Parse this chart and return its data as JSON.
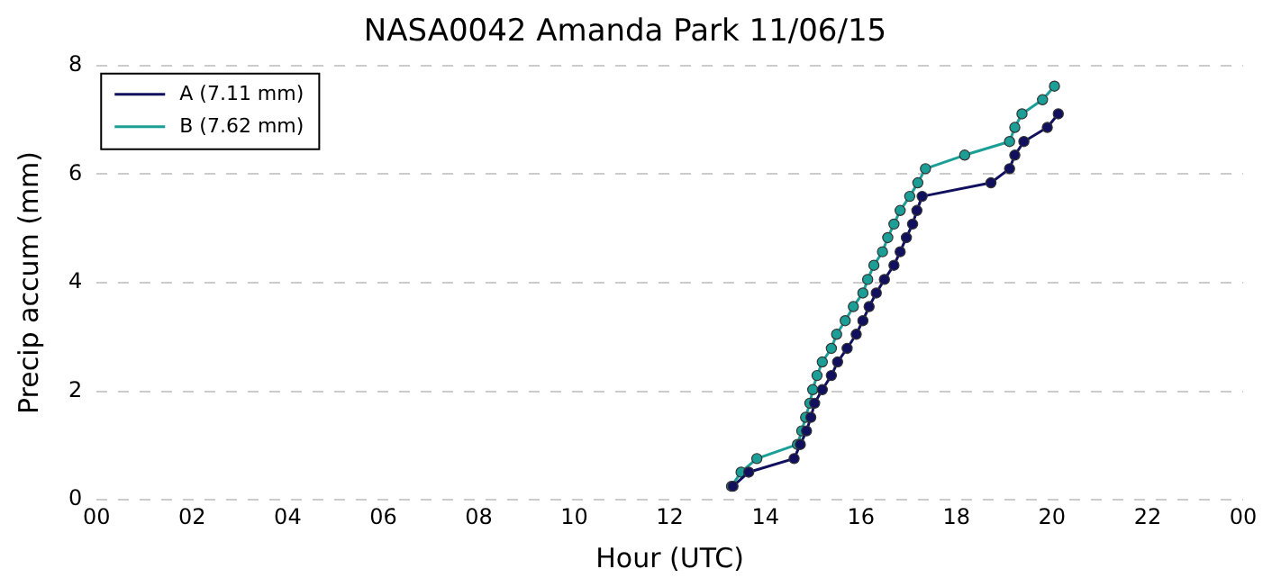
{
  "chart_data": {
    "type": "line",
    "title": "NASA0042 Amanda Park 11/06/15",
    "xlabel": "Hour (UTC)",
    "ylabel": "Precip accum (mm)",
    "xlim": [
      0,
      24
    ],
    "xticks": [
      {
        "value": 0,
        "label": "00"
      },
      {
        "value": 2,
        "label": "02"
      },
      {
        "value": 4,
        "label": "04"
      },
      {
        "value": 6,
        "label": "06"
      },
      {
        "value": 8,
        "label": "08"
      },
      {
        "value": 10,
        "label": "10"
      },
      {
        "value": 12,
        "label": "12"
      },
      {
        "value": 14,
        "label": "14"
      },
      {
        "value": 16,
        "label": "16"
      },
      {
        "value": 18,
        "label": "18"
      },
      {
        "value": 20,
        "label": "20"
      },
      {
        "value": 22,
        "label": "22"
      },
      {
        "value": 24,
        "label": "00"
      }
    ],
    "ylim": [
      0,
      8
    ],
    "yticks": [
      0,
      2,
      4,
      6,
      8
    ],
    "grid": "y",
    "legend": "top left",
    "marker": "circle",
    "line_style": "solid",
    "series": [
      {
        "name": "A (7.11 mm)",
        "color": "#10105e",
        "x": [
          13.32,
          13.65,
          14.6,
          14.73,
          14.86,
          14.95,
          15.03,
          15.19,
          15.38,
          15.51,
          15.71,
          15.9,
          16.04,
          16.17,
          16.32,
          16.49,
          16.69,
          16.82,
          16.95,
          17.08,
          17.17,
          17.28,
          18.72,
          19.11,
          19.22,
          19.41,
          19.9,
          20.13
        ],
        "values": [
          0.25,
          0.51,
          0.76,
          1.02,
          1.27,
          1.52,
          1.78,
          2.03,
          2.29,
          2.54,
          2.79,
          3.05,
          3.3,
          3.56,
          3.81,
          4.06,
          4.32,
          4.57,
          4.83,
          5.08,
          5.33,
          5.59,
          5.84,
          6.1,
          6.35,
          6.6,
          6.86,
          7.11
        ]
      },
      {
        "name": "B (7.62 mm)",
        "color": "#1a9e96",
        "x": [
          13.29,
          13.49,
          13.82,
          14.67,
          14.76,
          14.84,
          14.93,
          14.99,
          15.08,
          15.19,
          15.38,
          15.49,
          15.67,
          15.84,
          16.04,
          16.14,
          16.27,
          16.45,
          16.56,
          16.69,
          16.82,
          17.02,
          17.19,
          17.35,
          18.17,
          19.11,
          19.22,
          19.37,
          19.8,
          20.05
        ],
        "values": [
          0.25,
          0.51,
          0.76,
          1.02,
          1.27,
          1.52,
          1.78,
          2.03,
          2.29,
          2.54,
          2.79,
          3.05,
          3.3,
          3.56,
          3.81,
          4.06,
          4.32,
          4.57,
          4.83,
          5.08,
          5.33,
          5.59,
          5.84,
          6.1,
          6.35,
          6.6,
          6.86,
          7.11,
          7.37,
          7.62
        ]
      }
    ]
  }
}
